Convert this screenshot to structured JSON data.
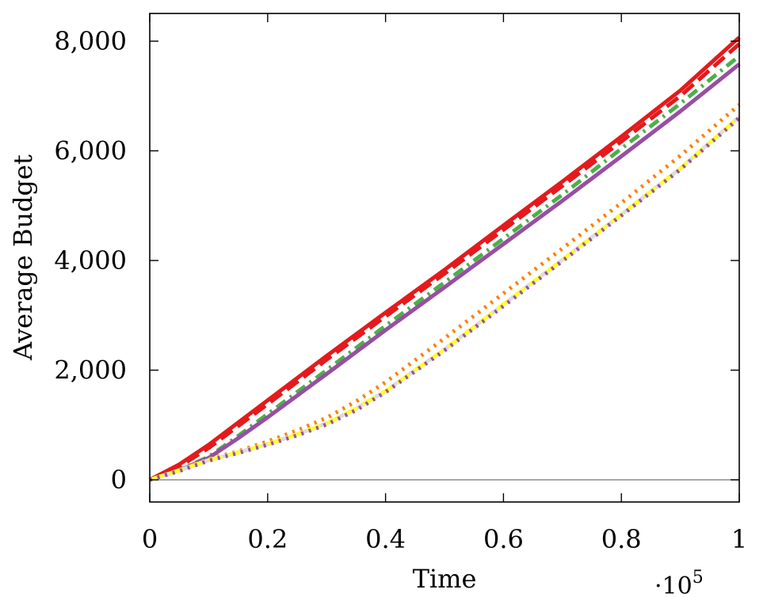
{
  "chart_data": {
    "type": "line",
    "xlabel": "Time",
    "ylabel": "Average Budget",
    "x_scale_label": "·10",
    "x_scale_exponent": "5",
    "xlim": [
      0,
      1
    ],
    "ylim": [
      -400,
      8500
    ],
    "x_ticks": [
      0,
      0.2,
      0.4,
      0.6,
      0.8,
      1
    ],
    "x_tick_labels": [
      "0",
      "0.2",
      "0.4",
      "0.6",
      "0.8",
      "1"
    ],
    "y_ticks": [
      0,
      2000,
      4000,
      6000,
      8000
    ],
    "y_tick_labels": [
      "0",
      "2,000",
      "4,000",
      "6,000",
      "8,000"
    ],
    "zero_line": true,
    "grid": false,
    "series": [
      {
        "color": "#e41a1c",
        "style": "solid",
        "x": [
          0,
          0.05,
          0.1,
          0.2,
          0.3,
          0.4,
          0.5,
          0.6,
          0.7,
          0.8,
          0.9,
          1.0
        ],
        "y": [
          0,
          280,
          640,
          1450,
          2260,
          3050,
          3830,
          4640,
          5440,
          6260,
          7100,
          8070
        ]
      },
      {
        "color": "#e41a1c",
        "style": "dashed",
        "x": [
          0,
          0.05,
          0.1,
          0.2,
          0.3,
          0.4,
          0.5,
          0.6,
          0.7,
          0.8,
          0.9,
          1.0
        ],
        "y": [
          0,
          240,
          580,
          1380,
          2190,
          2980,
          3760,
          4560,
          5360,
          6170,
          7000,
          7950
        ]
      },
      {
        "color": "#4daf4a",
        "style": "dashdot",
        "x": [
          0,
          0.05,
          0.1,
          0.15,
          0.2,
          0.3,
          0.4,
          0.5,
          0.6,
          0.7,
          0.8,
          0.9,
          1.0
        ],
        "y": [
          0,
          180,
          420,
          800,
          1200,
          2000,
          2810,
          3600,
          4400,
          5200,
          6040,
          6860,
          7730
        ]
      },
      {
        "color": "#984ea3",
        "style": "solid",
        "x": [
          0,
          0.05,
          0.1,
          0.15,
          0.2,
          0.3,
          0.4,
          0.5,
          0.6,
          0.7,
          0.8,
          0.9,
          1.0
        ],
        "y": [
          0,
          170,
          400,
          760,
          1140,
          1930,
          2730,
          3510,
          4300,
          5090,
          5900,
          6720,
          7580
        ]
      },
      {
        "color": "#ff7f00",
        "style": "dotted",
        "x": [
          0,
          0.05,
          0.1,
          0.15,
          0.2,
          0.25,
          0.3,
          0.35,
          0.4,
          0.5,
          0.6,
          0.7,
          0.8,
          0.9,
          1.0
        ],
        "y": [
          0,
          170,
          380,
          520,
          700,
          900,
          1130,
          1430,
          1780,
          2580,
          3400,
          4220,
          5050,
          5910,
          6840
        ]
      },
      {
        "color": "#dddddd",
        "style": "solid",
        "x": [
          0,
          0.05,
          0.1,
          0.15,
          0.2,
          0.25,
          0.3,
          0.35,
          0.4,
          0.5,
          0.6,
          0.7,
          0.8,
          0.9,
          1.0
        ],
        "y": [
          0,
          170,
          360,
          500,
          650,
          830,
          1030,
          1300,
          1620,
          2380,
          3200,
          4010,
          4840,
          5680,
          6620
        ]
      },
      {
        "color": "#ffff33",
        "style": "dashed",
        "x": [
          0,
          0.05,
          0.1,
          0.15,
          0.2,
          0.25,
          0.3,
          0.35,
          0.4,
          0.5,
          0.6,
          0.7,
          0.8,
          0.9,
          1.0
        ],
        "y": [
          0,
          170,
          360,
          500,
          650,
          830,
          1030,
          1300,
          1620,
          2380,
          3200,
          4010,
          4840,
          5680,
          6620
        ]
      },
      {
        "color": "#984ea3",
        "style": "dotted",
        "x": [
          0,
          0.05,
          0.1,
          0.15,
          0.2,
          0.25,
          0.3,
          0.35,
          0.4,
          0.5,
          0.6,
          0.7,
          0.8,
          0.9,
          1.0
        ],
        "y": [
          0,
          160,
          350,
          490,
          640,
          810,
          1010,
          1270,
          1600,
          2360,
          3170,
          3990,
          4820,
          5660,
          6600
        ]
      }
    ]
  }
}
